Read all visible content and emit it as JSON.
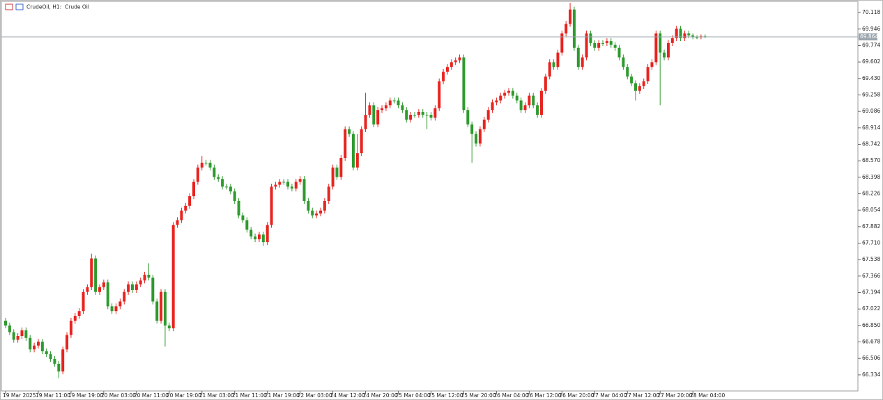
{
  "chart_data": {
    "type": "candlestick",
    "title": "CrudeOil, H1:  Crude Oil",
    "up_color": "#e8231f",
    "down_color": "#2e9a2e",
    "ylim": [
      66.166,
      70.235
    ],
    "yticks": [
      70.118,
      69.946,
      69.774,
      69.602,
      {
        "value": 69.43,
        "label": "69.430"
      },
      69.258,
      69.086,
      68.914,
      68.742,
      {
        "value": 68.57,
        "label": "68.570"
      },
      68.398,
      68.226,
      68.054,
      67.882,
      {
        "value": 67.71,
        "label": "67.710"
      },
      67.538,
      67.366,
      67.194,
      67.022,
      {
        "value": 66.85,
        "label": "66.850"
      },
      66.678,
      66.506,
      66.334
    ],
    "xticks": [
      {
        "value": 0,
        "label": "19 Mar 2025"
      },
      {
        "value": 8,
        "label": "19 Mar 11:00"
      },
      {
        "value": 16,
        "label": "19 Mar 19:00"
      },
      {
        "value": 24,
        "label": "20 Mar 03:00"
      },
      {
        "value": 32,
        "label": "20 Mar 11:00"
      },
      {
        "value": 40,
        "label": "20 Mar 19:00"
      },
      {
        "value": 48,
        "label": "21 Mar 03:00"
      },
      {
        "value": 56,
        "label": "21 Mar 11:00"
      },
      {
        "value": 64,
        "label": "21 Mar 19:00"
      },
      {
        "value": 72,
        "label": "22 Mar 03:00"
      },
      {
        "value": 80,
        "label": "24 Mar 12:00"
      },
      {
        "value": 88,
        "label": "24 Mar 20:00"
      },
      {
        "value": 96,
        "label": "25 Mar 04:00"
      },
      {
        "value": 104,
        "label": "25 Mar 12:00"
      },
      {
        "value": 112,
        "label": "25 Mar 20:00"
      },
      {
        "value": 120,
        "label": "26 Mar 04:00"
      },
      {
        "value": 128,
        "label": "26 Mar 12:00"
      },
      {
        "value": 136,
        "label": "26 Mar 20:00"
      },
      {
        "value": 144,
        "label": "27 Mar 04:00"
      },
      {
        "value": 152,
        "label": "27 Mar 12:00"
      },
      {
        "value": 160,
        "label": "27 Mar 20:00"
      },
      {
        "value": 168,
        "label": "28 Mar 04:00"
      }
    ],
    "last_price": 69.864,
    "open": [
      66.9,
      66.85,
      66.78,
      66.7,
      66.74,
      66.8,
      66.72,
      66.6,
      66.64,
      66.68,
      66.58,
      66.55,
      66.5,
      66.45,
      66.37,
      66.6,
      66.75,
      66.9,
      66.95,
      67.0,
      67.2,
      67.25,
      67.55,
      67.2,
      67.25,
      67.3,
      67.05,
      67.0,
      67.05,
      67.1,
      67.2,
      67.28,
      67.22,
      67.28,
      67.32,
      67.38,
      67.35,
      67.1,
      66.9,
      67.2,
      66.85,
      66.82,
      67.9,
      67.95,
      68.05,
      68.1,
      68.2,
      68.35,
      68.5,
      68.55,
      68.55,
      68.5,
      68.4,
      68.38,
      68.3,
      68.3,
      68.25,
      68.15,
      68.0,
      67.95,
      67.85,
      67.78,
      67.75,
      67.8,
      67.72,
      67.9,
      68.3,
      68.32,
      68.35,
      68.35,
      68.3,
      68.28,
      68.35,
      68.38,
      68.15,
      68.05,
      68.0,
      68.02,
      68.05,
      68.15,
      68.3,
      68.5,
      68.4,
      68.6,
      68.9,
      68.85,
      68.5,
      68.65,
      68.9,
      69.05,
      69.15,
      68.95,
      69.1,
      69.12,
      69.15,
      69.2,
      69.2,
      69.15,
      69.1,
      69.0,
      69.05,
      69.05,
      69.08,
      69.05,
      69.05,
      69.02,
      69.12,
      69.4,
      69.5,
      69.55,
      69.6,
      69.62,
      69.65,
      69.1,
      68.95,
      68.85,
      68.75,
      68.9,
      69.0,
      69.1,
      69.18,
      69.2,
      69.25,
      69.28,
      69.3,
      69.25,
      69.2,
      69.1,
      69.15,
      69.25,
      69.15,
      69.05,
      69.3,
      69.45,
      69.6,
      69.55,
      69.7,
      69.9,
      70.0,
      70.15,
      69.75,
      69.55,
      69.65,
      69.9,
      69.8,
      69.75,
      69.8,
      69.8,
      69.82,
      69.78,
      69.75,
      69.65,
      69.55,
      69.45,
      69.38,
      69.3,
      69.35,
      69.4,
      69.55,
      69.6,
      69.9,
      69.7,
      69.65,
      69.8,
      69.85,
      69.95,
      69.85,
      69.9,
      69.88,
      69.86,
      69.86,
      69.87
    ],
    "high": [
      66.93,
      66.88,
      66.81,
      66.77,
      66.83,
      66.83,
      66.75,
      66.67,
      66.71,
      66.71,
      66.61,
      66.58,
      66.53,
      66.48,
      66.63,
      66.78,
      66.93,
      66.98,
      67.03,
      67.23,
      67.28,
      67.6,
      67.58,
      67.28,
      67.33,
      67.33,
      67.08,
      67.08,
      67.13,
      67.23,
      67.31,
      67.31,
      67.31,
      67.35,
      67.41,
      67.5,
      67.38,
      67.13,
      67.23,
      67.23,
      66.88,
      67.93,
      67.98,
      68.08,
      68.13,
      68.23,
      68.38,
      68.53,
      68.62,
      68.58,
      68.58,
      68.53,
      68.43,
      68.41,
      68.33,
      68.33,
      68.28,
      68.18,
      68.03,
      67.98,
      67.88,
      67.81,
      67.83,
      67.83,
      67.93,
      68.33,
      68.35,
      68.38,
      68.38,
      68.38,
      68.33,
      68.38,
      68.41,
      68.41,
      68.18,
      68.08,
      68.05,
      68.08,
      68.18,
      68.33,
      68.53,
      68.53,
      68.63,
      68.93,
      68.93,
      68.88,
      68.85,
      68.93,
      69.28,
      69.18,
      69.18,
      69.13,
      69.15,
      69.18,
      69.23,
      69.23,
      69.23,
      69.18,
      69.13,
      69.08,
      69.08,
      69.11,
      69.11,
      69.08,
      69.08,
      69.15,
      69.43,
      69.53,
      69.58,
      69.63,
      69.65,
      69.68,
      69.68,
      69.13,
      68.98,
      68.88,
      68.93,
      69.03,
      69.13,
      69.21,
      69.23,
      69.28,
      69.31,
      69.33,
      69.33,
      69.28,
      69.23,
      69.18,
      69.28,
      69.28,
      69.18,
      69.33,
      69.48,
      69.63,
      69.63,
      69.73,
      69.93,
      70.03,
      70.22,
      70.18,
      69.78,
      69.68,
      69.93,
      69.93,
      69.83,
      69.83,
      69.83,
      69.85,
      69.85,
      69.81,
      69.78,
      69.68,
      69.58,
      69.48,
      69.41,
      69.38,
      69.43,
      69.58,
      69.63,
      69.93,
      69.93,
      69.73,
      69.83,
      69.88,
      69.98,
      69.98,
      69.93,
      69.93,
      69.9,
      69.88,
      69.89,
      69.89
    ],
    "low": [
      66.82,
      66.75,
      66.67,
      66.67,
      66.71,
      66.69,
      66.57,
      66.57,
      66.61,
      66.55,
      66.52,
      66.47,
      66.42,
      66.3,
      66.34,
      66.57,
      66.72,
      66.87,
      66.92,
      66.97,
      67.17,
      67.22,
      67.17,
      67.17,
      67.22,
      67.02,
      66.97,
      66.97,
      67.02,
      67.07,
      67.17,
      67.19,
      67.19,
      67.25,
      67.29,
      67.32,
      67.07,
      66.87,
      66.87,
      66.63,
      66.79,
      66.79,
      67.87,
      67.92,
      68.02,
      68.07,
      68.17,
      68.32,
      68.47,
      68.52,
      68.47,
      68.37,
      68.35,
      68.27,
      68.27,
      68.22,
      68.12,
      67.97,
      67.92,
      67.82,
      67.75,
      67.72,
      67.72,
      67.68,
      67.69,
      67.87,
      68.27,
      68.29,
      68.32,
      68.27,
      68.25,
      68.25,
      68.32,
      68.12,
      68.02,
      67.97,
      67.97,
      67.99,
      68.02,
      68.12,
      68.27,
      68.37,
      68.37,
      68.57,
      68.82,
      68.47,
      68.47,
      68.62,
      68.87,
      69.02,
      68.92,
      68.92,
      69.07,
      69.09,
      69.12,
      69.17,
      69.12,
      69.07,
      68.97,
      68.97,
      69.02,
      69.02,
      69.02,
      68.9,
      68.99,
      68.99,
      69.09,
      69.37,
      69.47,
      69.52,
      69.57,
      69.59,
      69.07,
      68.92,
      68.55,
      68.72,
      68.72,
      68.87,
      68.97,
      69.07,
      69.15,
      69.17,
      69.22,
      69.25,
      69.22,
      69.17,
      69.07,
      69.07,
      69.12,
      69.12,
      69.02,
      69.02,
      69.27,
      69.42,
      69.52,
      69.52,
      69.67,
      69.87,
      69.97,
      69.72,
      69.52,
      69.52,
      69.62,
      69.77,
      69.72,
      69.72,
      69.77,
      69.77,
      69.75,
      69.72,
      69.62,
      69.52,
      69.42,
      69.35,
      69.2,
      69.27,
      69.32,
      69.37,
      69.52,
      69.57,
      69.15,
      69.62,
      69.62,
      69.77,
      69.82,
      69.82,
      69.82,
      69.85,
      69.84,
      69.84,
      69.84,
      69.85
    ],
    "close": [
      66.85,
      66.78,
      66.7,
      66.74,
      66.8,
      66.72,
      66.6,
      66.64,
      66.68,
      66.58,
      66.55,
      66.5,
      66.45,
      66.37,
      66.6,
      66.75,
      66.9,
      66.95,
      67.0,
      67.2,
      67.25,
      67.55,
      67.2,
      67.25,
      67.3,
      67.05,
      67.0,
      67.05,
      67.1,
      67.2,
      67.28,
      67.22,
      67.28,
      67.32,
      67.38,
      67.35,
      67.1,
      66.9,
      67.2,
      66.85,
      66.82,
      67.9,
      67.95,
      68.05,
      68.1,
      68.2,
      68.35,
      68.5,
      68.55,
      68.55,
      68.5,
      68.4,
      68.38,
      68.3,
      68.3,
      68.25,
      68.15,
      68.0,
      67.95,
      67.85,
      67.78,
      67.75,
      67.8,
      67.72,
      67.9,
      68.3,
      68.32,
      68.35,
      68.35,
      68.3,
      68.28,
      68.35,
      68.38,
      68.15,
      68.05,
      68.0,
      68.02,
      68.05,
      68.15,
      68.3,
      68.5,
      68.4,
      68.6,
      68.9,
      68.85,
      68.5,
      68.65,
      68.9,
      69.05,
      69.15,
      68.95,
      69.1,
      69.12,
      69.15,
      69.2,
      69.2,
      69.15,
      69.1,
      69.0,
      69.05,
      69.05,
      69.08,
      69.05,
      69.05,
      69.02,
      69.12,
      69.4,
      69.5,
      69.55,
      69.6,
      69.62,
      69.65,
      69.1,
      68.95,
      68.85,
      68.75,
      68.9,
      69.0,
      69.1,
      69.18,
      69.2,
      69.25,
      69.28,
      69.3,
      69.25,
      69.2,
      69.1,
      69.15,
      69.25,
      69.15,
      69.05,
      69.3,
      69.45,
      69.6,
      69.55,
      69.7,
      69.9,
      70.0,
      70.15,
      69.75,
      69.55,
      69.65,
      69.9,
      69.8,
      69.75,
      69.8,
      69.8,
      69.82,
      69.78,
      69.75,
      69.65,
      69.55,
      69.45,
      69.38,
      69.3,
      69.35,
      69.4,
      69.55,
      69.6,
      69.9,
      69.7,
      69.65,
      69.8,
      69.85,
      69.95,
      69.85,
      69.9,
      69.88,
      69.86,
      69.86,
      69.87,
      69.864
    ]
  }
}
